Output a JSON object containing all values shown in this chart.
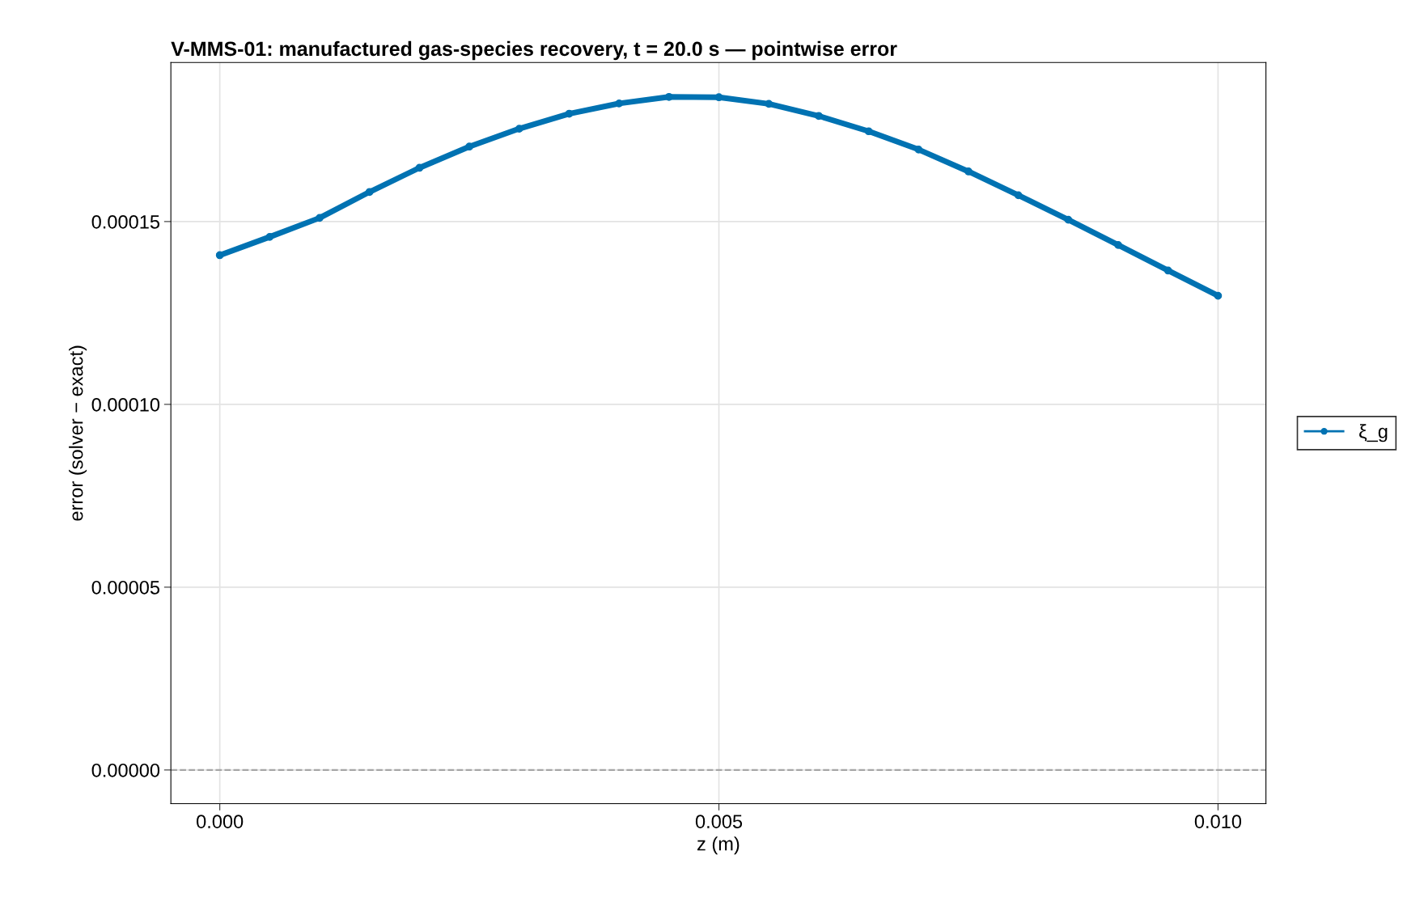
{
  "chart_data": {
    "type": "line",
    "title": "V-MMS-01: manufactured gas-species recovery, t = 20.0 s — pointwise error",
    "xlabel": "z (m)",
    "ylabel": "error (solver − exact)",
    "series": [
      {
        "name": "ξ_g",
        "color": "#0072b2",
        "x": [
          0.0,
          0.0005,
          0.001,
          0.0015,
          0.002,
          0.0025,
          0.003,
          0.0035,
          0.004,
          0.0045,
          0.005,
          0.0055,
          0.006,
          0.0065,
          0.007,
          0.0075,
          0.008,
          0.0085,
          0.009,
          0.0095,
          0.01
        ],
        "values": [
          0.0001408,
          0.0001458,
          0.000151,
          0.0001581,
          0.0001647,
          0.0001705,
          0.0001754,
          0.0001795,
          0.0001823,
          0.0001841,
          0.000184,
          0.0001822,
          0.0001789,
          0.0001747,
          0.0001697,
          0.0001637,
          0.0001572,
          0.0001505,
          0.0001436,
          0.0001366,
          0.0001297
        ]
      }
    ],
    "xlim": [
      -0.00049,
      0.01048
    ],
    "xticks": [
      {
        "value": 0.0,
        "label": "0.000"
      },
      0.005,
      {
        "value": 0.01,
        "label": "0.010"
      }
    ],
    "ylim": [
      -9.2e-06,
      0.0001935
    ],
    "yticks": [
      {
        "value": 0.0,
        "label": "0.00000"
      },
      {
        "value": 5e-05,
        "label": "0.00005"
      },
      {
        "value": 0.0001,
        "label": "0.00010"
      },
      0.00015
    ],
    "ref_lines": [
      {
        "axis": "y",
        "value": 0.0,
        "color": "#a6a6a6",
        "line_style": "dashed"
      }
    ],
    "grid": true,
    "legend": "right",
    "marker": "circle",
    "line_style": "solid"
  }
}
